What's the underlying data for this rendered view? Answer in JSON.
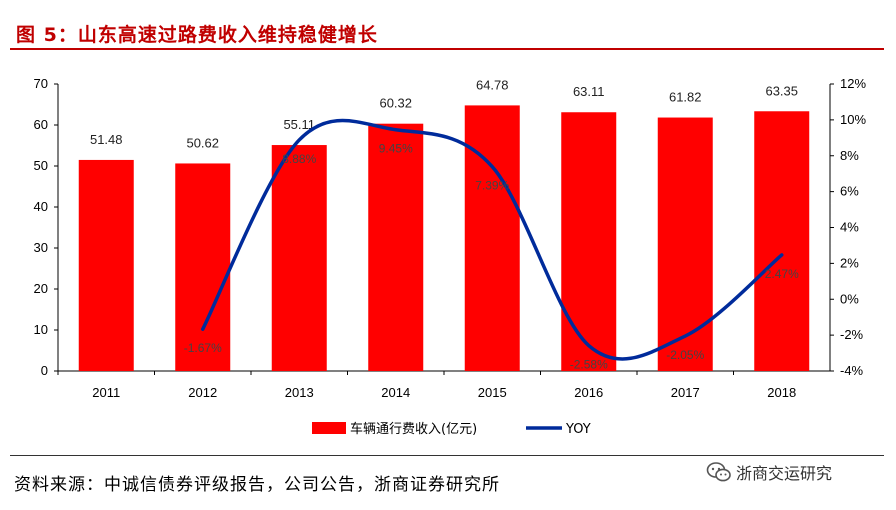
{
  "header": {
    "title": "图 5：山东高速过路费收入维持稳健增长"
  },
  "chart_data": {
    "type": "bar",
    "categories": [
      "2011",
      "2012",
      "2013",
      "2014",
      "2015",
      "2016",
      "2017",
      "2018"
    ],
    "series": [
      {
        "name": "车辆通行费收入(亿元)",
        "type": "bar",
        "axis": "left",
        "values": [
          51.48,
          50.62,
          55.11,
          60.32,
          64.78,
          63.11,
          61.82,
          63.35
        ],
        "labels": [
          "51.48",
          "50.62",
          "55.11",
          "60.32",
          "64.78",
          "63.11",
          "61.82",
          "63.35"
        ]
      },
      {
        "name": "YOY",
        "type": "line",
        "axis": "right",
        "values": [
          null,
          -1.67,
          8.88,
          9.45,
          7.39,
          -2.58,
          -2.05,
          2.47
        ],
        "labels": [
          "",
          "-1.67%",
          "8.88%",
          "9.45%",
          "7.39%",
          "-2.58%",
          "-2.05%",
          "2.47%"
        ]
      }
    ],
    "y_left": {
      "min": 0,
      "max": 70,
      "ticks": [
        "0",
        "10",
        "20",
        "30",
        "40",
        "50",
        "60",
        "70"
      ]
    },
    "y_right": {
      "min": -4,
      "max": 12,
      "ticks": [
        "-4%",
        "-2%",
        "0%",
        "2%",
        "4%",
        "6%",
        "8%",
        "10%",
        "12%"
      ]
    },
    "grid": false,
    "legend_position": "bottom-center",
    "colors": {
      "bar": "#ff0000",
      "line": "#002b9b"
    }
  },
  "footer": {
    "source": "资料来源：中诚信债券评级报告，公司公告，浙商证券研究所",
    "watermark": "浙商交运研究",
    "watermark_icon": "wechat-icon"
  }
}
